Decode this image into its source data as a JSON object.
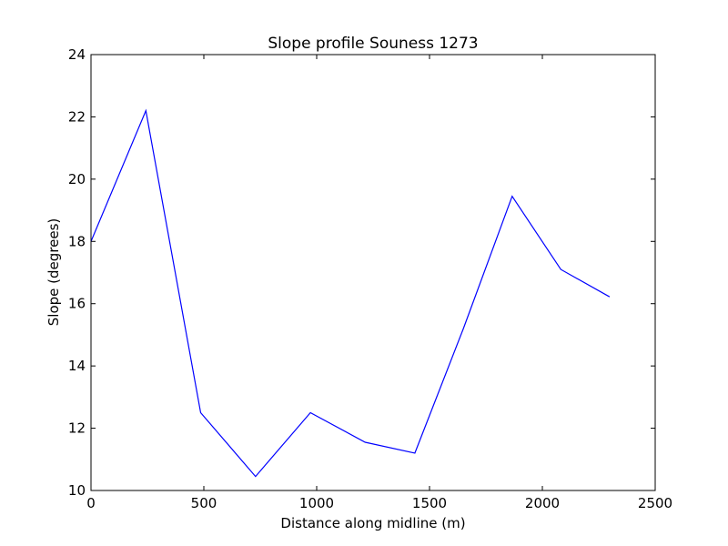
{
  "chart_data": {
    "type": "line",
    "title": "Slope profile Souness 1273",
    "xlabel": "Distance along midline (m)",
    "ylabel": "Slope (degrees)",
    "xlim": [
      0,
      2500
    ],
    "ylim": [
      10,
      24
    ],
    "xticks": [
      "0",
      "500",
      "1000",
      "1500",
      "2000",
      "2500"
    ],
    "yticks": [
      "10",
      "12",
      "14",
      "16",
      "18",
      "20",
      "22",
      "24"
    ],
    "grid": false,
    "legend": "none",
    "series": [
      {
        "color": "#0000ff",
        "x": [
          0,
          243,
          486,
          729,
          972,
          1215,
          1435,
          1650,
          1866,
          2082,
          2298
        ],
        "y": [
          18.0,
          22.2,
          12.5,
          10.45,
          12.5,
          11.55,
          11.2,
          15.2,
          19.45,
          17.1,
          16.22
        ]
      }
    ]
  }
}
